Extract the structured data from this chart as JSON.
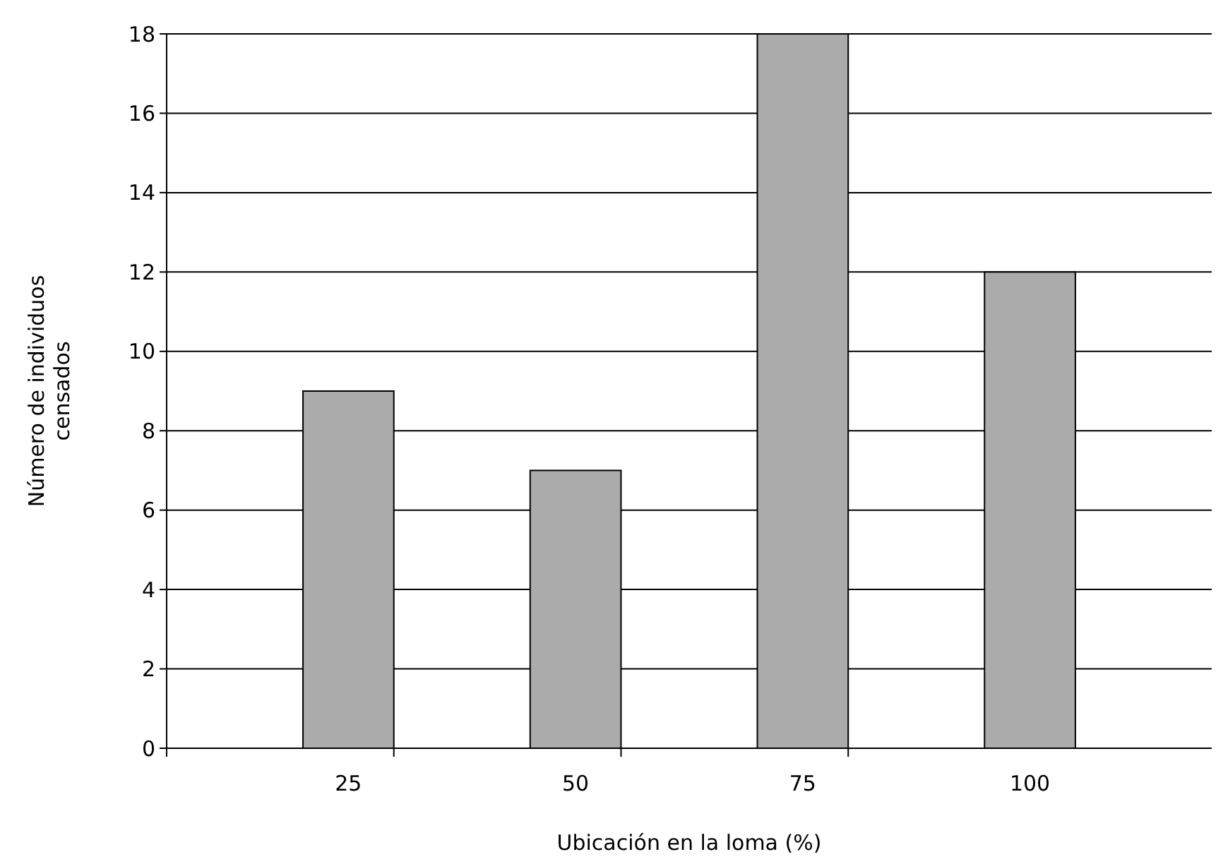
{
  "chart_data": {
    "type": "bar",
    "categories": [
      "25",
      "50",
      "75",
      "100"
    ],
    "values": [
      9,
      7,
      18,
      12
    ],
    "color": "#ababab",
    "xlabel": "Ubicación en la loma (%)",
    "ylabel": "Número de individuos censados",
    "ylim": [
      0,
      18
    ],
    "yticks": [
      0,
      2,
      4,
      6,
      8,
      10,
      12,
      14,
      16,
      18
    ],
    "grid": "y"
  }
}
